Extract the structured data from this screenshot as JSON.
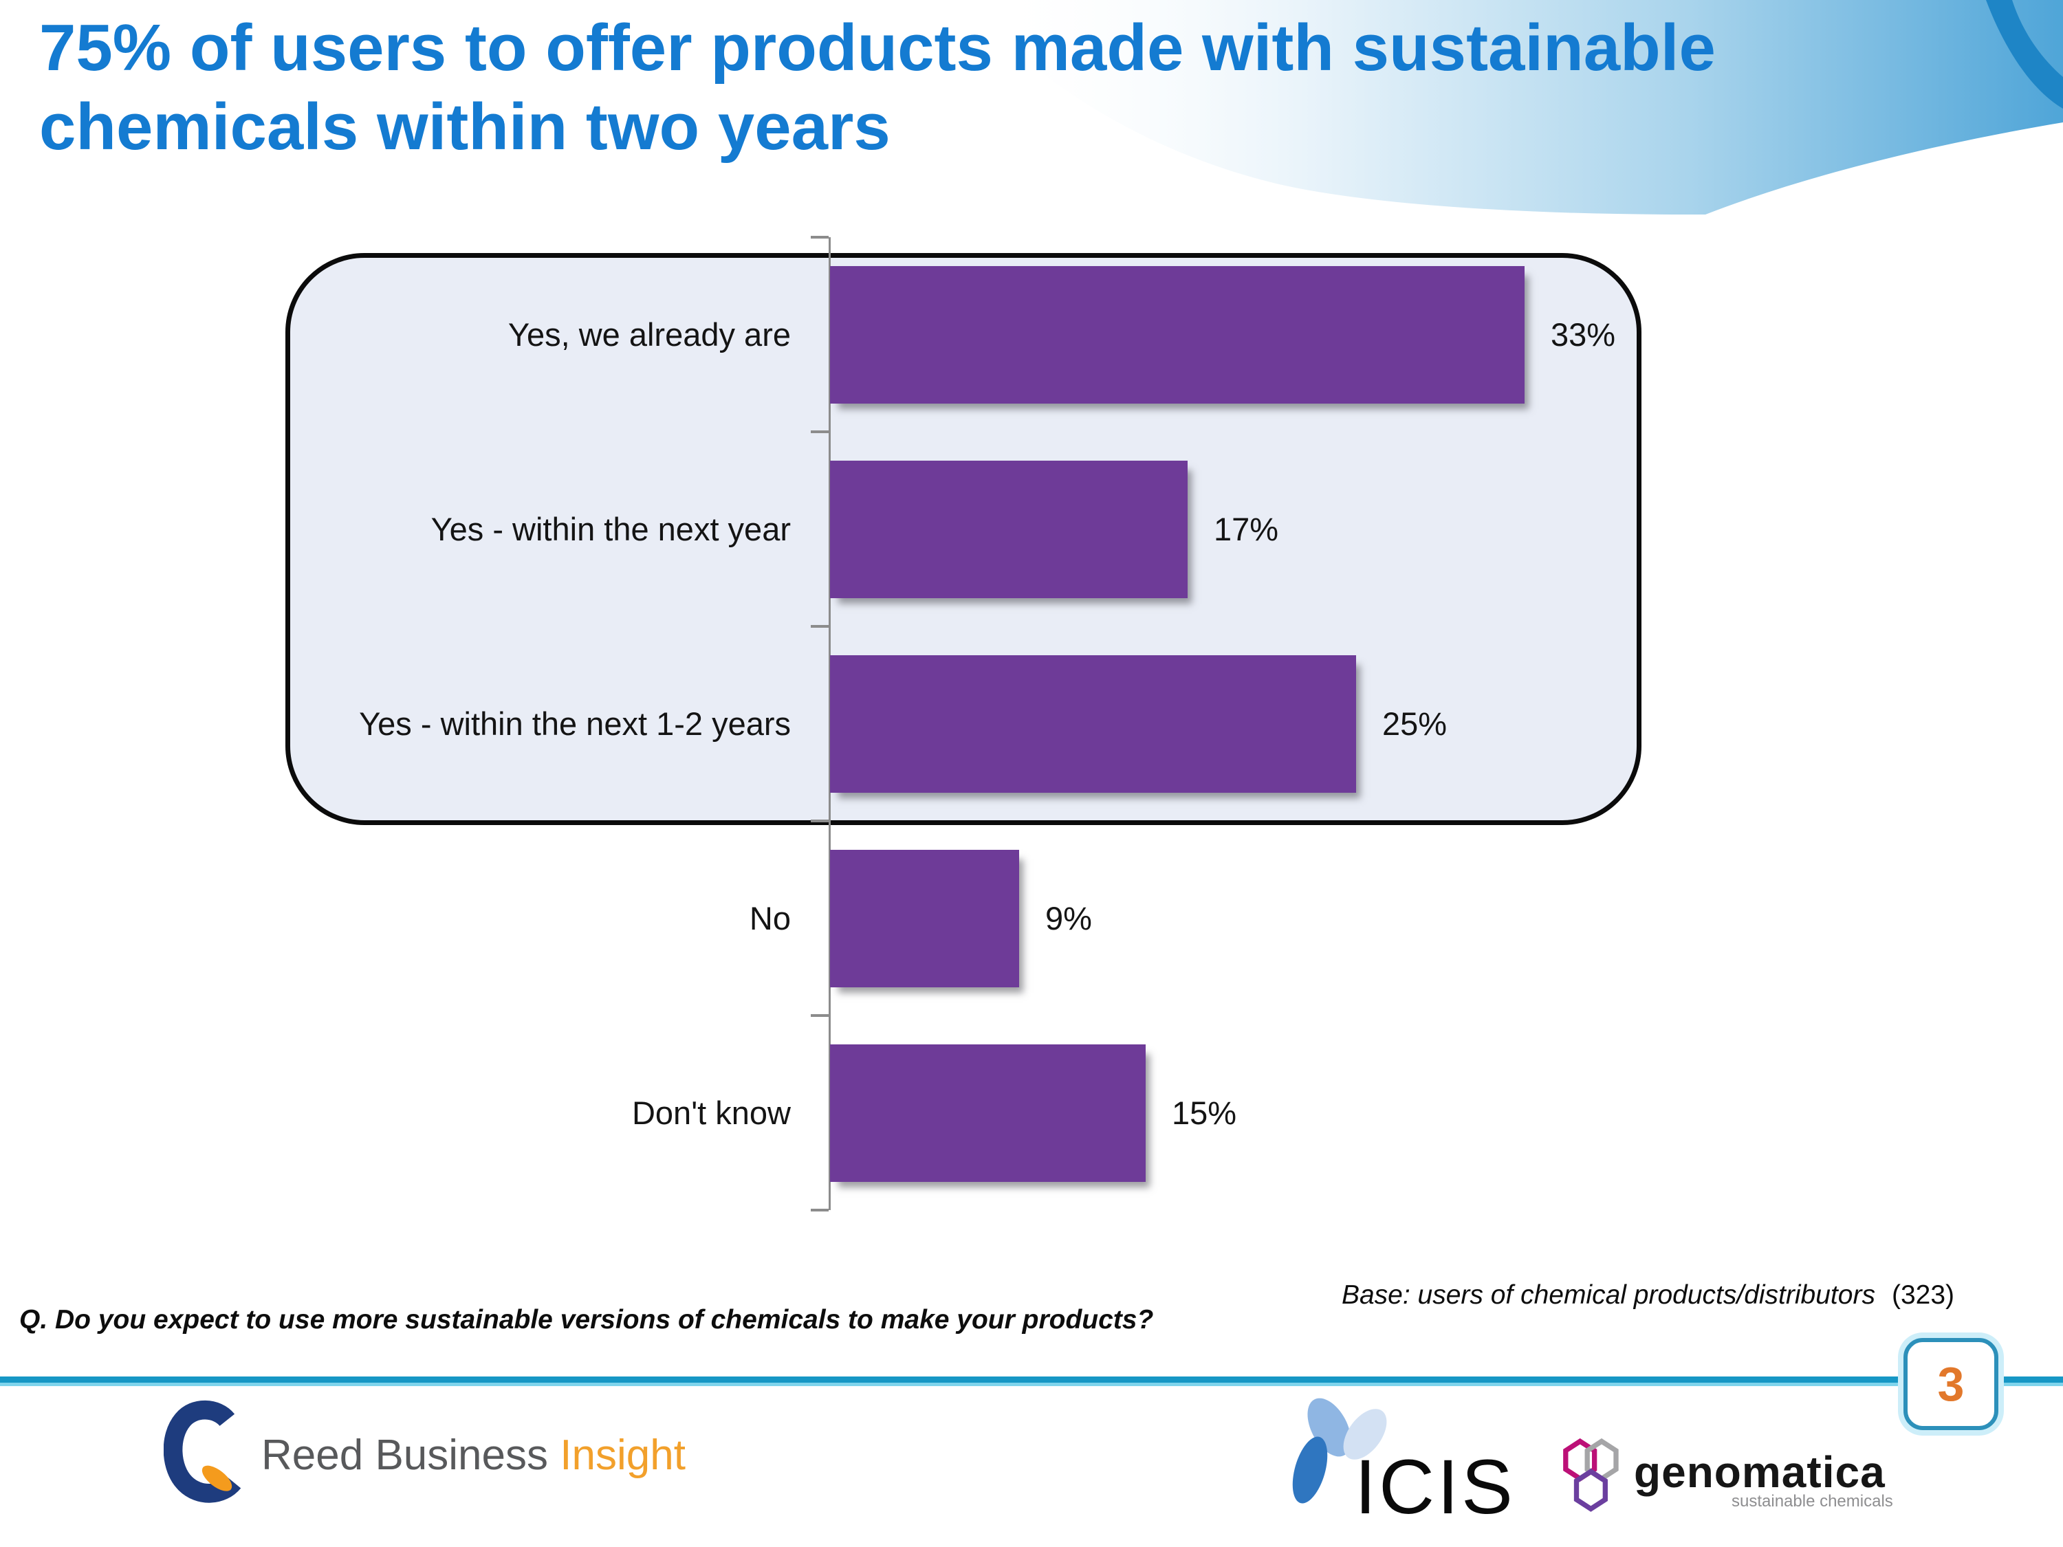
{
  "slide": {
    "title_line1": "75% of users to offer products made with sustainable",
    "title_line2": "chemicals within two years",
    "question": "Q. Do you expect to use more sustainable versions of chemicals to make your products?",
    "base_note": "Base: users of chemical products/distributors",
    "base_count": "(323)",
    "page_number": "3"
  },
  "chart_data": {
    "type": "bar",
    "orientation": "horizontal",
    "categories": [
      "Yes, we already are",
      "Yes - within the next year",
      "Yes - within the next 1-2 years",
      "No",
      "Don't know"
    ],
    "values": [
      33,
      17,
      25,
      9,
      15
    ],
    "value_labels": [
      "33%",
      "17%",
      "25%",
      "9%",
      "15%"
    ],
    "unit": "%",
    "xlim": [
      0,
      38
    ],
    "grid": false,
    "legend": false,
    "bar_color": "#6E3B98",
    "annotation": "rounded black outline groups the three Yes bars (33+17+25 = 75%)"
  },
  "logos": {
    "reed": {
      "text_main": "Reed Business",
      "text_accent": "Insight"
    },
    "icis": {
      "text": "ICIS"
    },
    "genomatica": {
      "text": "genomatica",
      "subtext": "sustainable chemicals"
    }
  },
  "icons": {
    "header_wave": "blue-gradient-wave-graphic",
    "reed_mark": "navy-swirl-with-orange-leaf",
    "icis_mark": "three-petal-blue-flower",
    "genomatica_mark": "three-interlocking-hexagons"
  },
  "colors": {
    "title_blue": "#147BD1",
    "bar_purple": "#6E3B98",
    "box_fill": "#E9EDF6",
    "box_border": "#0B0B0B",
    "axis_gray": "#8C8C8C",
    "divider_dark": "#1697C5",
    "divider_light": "#7FD4EC",
    "badge_border": "#2C90BA",
    "page_number_orange": "#E2782B",
    "insight_orange": "#F2A02B",
    "reed_gray": "#58595B"
  }
}
